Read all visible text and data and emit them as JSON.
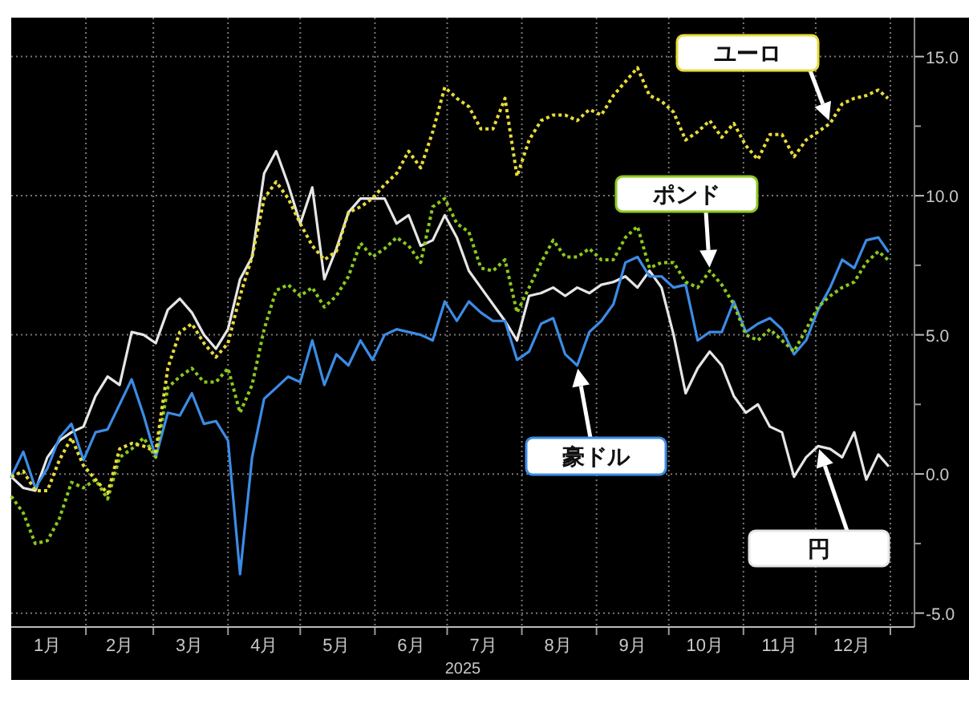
{
  "chart_data": {
    "type": "line",
    "xlabel": "2025",
    "grid": true,
    "legend": false,
    "xlim": [
      "2025-01-01",
      "2026-01-11"
    ],
    "xticks": [
      {
        "value": "2025-01-16",
        "label": "1月"
      },
      {
        "value": "2025-02-01",
        "label": null
      },
      {
        "value": "2025-02-15",
        "label": "2月"
      },
      {
        "value": "2025-03-01",
        "label": null
      },
      {
        "value": "2025-03-16",
        "label": "3月"
      },
      {
        "value": "2025-04-01",
        "label": null
      },
      {
        "value": "2025-04-16",
        "label": "4月"
      },
      {
        "value": "2025-05-01",
        "label": null
      },
      {
        "value": "2025-05-16",
        "label": "5月"
      },
      {
        "value": "2025-06-01",
        "label": null
      },
      {
        "value": "2025-06-16",
        "label": "6月"
      },
      {
        "value": "2025-07-01",
        "label": null
      },
      {
        "value": "2025-07-16",
        "label": "7月"
      },
      {
        "value": "2025-08-01",
        "label": null
      },
      {
        "value": "2025-08-16",
        "label": "8月"
      },
      {
        "value": "2025-09-01",
        "label": null
      },
      {
        "value": "2025-09-16",
        "label": "9月"
      },
      {
        "value": "2025-10-01",
        "label": null
      },
      {
        "value": "2025-10-16",
        "label": "10月"
      },
      {
        "value": "2025-11-01",
        "label": null
      },
      {
        "value": "2025-11-16",
        "label": "11月"
      },
      {
        "value": "2025-12-01",
        "label": null
      },
      {
        "value": "2025-12-16",
        "label": "12月"
      },
      {
        "value": "2026-01-01",
        "label": null
      }
    ],
    "ylim": [
      -5.5,
      16.4
    ],
    "yticks": [
      {
        "value": -5,
        "label": "-5.0"
      },
      {
        "value": -2.5,
        "label": null
      },
      {
        "value": 0,
        "label": "0.0"
      },
      {
        "value": 2.5,
        "label": null
      },
      {
        "value": 5,
        "label": "5.0"
      },
      {
        "value": 7.5,
        "label": null
      },
      {
        "value": 10,
        "label": "10.0"
      },
      {
        "value": 12.5,
        "label": null
      },
      {
        "value": 15,
        "label": "15.0"
      }
    ],
    "x": [
      "2025-01-01",
      "2025-01-06",
      "2025-01-11",
      "2025-01-16",
      "2025-01-21",
      "2025-01-26",
      "2025-01-31",
      "2025-02-05",
      "2025-02-10",
      "2025-02-15",
      "2025-02-20",
      "2025-02-25",
      "2025-03-02",
      "2025-03-07",
      "2025-03-12",
      "2025-03-17",
      "2025-03-22",
      "2025-03-27",
      "2025-04-01",
      "2025-04-06",
      "2025-04-11",
      "2025-04-16",
      "2025-04-21",
      "2025-04-26",
      "2025-05-01",
      "2025-05-06",
      "2025-05-11",
      "2025-05-16",
      "2025-05-21",
      "2025-05-26",
      "2025-05-31",
      "2025-06-05",
      "2025-06-10",
      "2025-06-15",
      "2025-06-20",
      "2025-06-25",
      "2025-06-30",
      "2025-07-05",
      "2025-07-10",
      "2025-07-15",
      "2025-07-20",
      "2025-07-25",
      "2025-07-30",
      "2025-08-04",
      "2025-08-09",
      "2025-08-14",
      "2025-08-19",
      "2025-08-24",
      "2025-08-29",
      "2025-09-03",
      "2025-09-08",
      "2025-09-13",
      "2025-09-18",
      "2025-09-23",
      "2025-09-28",
      "2025-10-03",
      "2025-10-08",
      "2025-10-13",
      "2025-10-18",
      "2025-10-23",
      "2025-10-28",
      "2025-11-02",
      "2025-11-07",
      "2025-11-12",
      "2025-11-17",
      "2025-11-22",
      "2025-11-27",
      "2025-12-02",
      "2025-12-07",
      "2025-12-12",
      "2025-12-17",
      "2025-12-22",
      "2025-12-27",
      "2025-12-31"
    ],
    "series": [
      {
        "name": "円",
        "color": "#e6e6e6",
        "line_style": "solid",
        "values": [
          -0.1,
          -0.5,
          -0.6,
          0.6,
          1.2,
          1.5,
          1.7,
          2.8,
          3.5,
          3.2,
          5.1,
          5.0,
          4.7,
          5.9,
          6.3,
          5.8,
          5.0,
          4.5,
          5.2,
          7.0,
          7.8,
          10.8,
          11.6,
          10.4,
          9.0,
          10.3,
          7.0,
          8.1,
          9.4,
          9.9,
          9.9,
          9.9,
          9.0,
          9.3,
          8.2,
          8.4,
          9.3,
          8.5,
          7.3,
          6.7,
          6.1,
          5.5,
          4.8,
          6.4,
          6.5,
          6.7,
          6.4,
          6.7,
          6.5,
          6.8,
          6.9,
          7.1,
          6.7,
          7.3,
          6.7,
          5.0,
          2.9,
          3.8,
          4.4,
          3.9,
          2.8,
          2.2,
          2.5,
          1.7,
          1.5,
          -0.1,
          0.6,
          1.0,
          0.9,
          0.6,
          1.5,
          -0.2,
          0.7,
          0.3
        ]
      },
      {
        "name": "豪ドル",
        "color": "#3c8ce6",
        "line_style": "solid",
        "values": [
          -0.1,
          0.8,
          -0.5,
          0.2,
          1.3,
          1.8,
          0.5,
          1.5,
          1.6,
          2.5,
          3.4,
          2.1,
          0.6,
          2.2,
          2.1,
          2.9,
          1.8,
          1.9,
          1.2,
          -3.6,
          0.6,
          2.7,
          3.1,
          3.5,
          3.3,
          4.8,
          3.2,
          4.3,
          3.9,
          4.8,
          4.1,
          5.0,
          5.2,
          5.1,
          5.0,
          4.8,
          6.2,
          5.5,
          6.2,
          5.8,
          5.5,
          5.5,
          4.1,
          4.4,
          5.4,
          5.6,
          4.3,
          3.9,
          5.1,
          5.5,
          6.1,
          7.6,
          7.8,
          7.1,
          7.1,
          6.7,
          6.8,
          4.8,
          5.1,
          5.1,
          6.2,
          5.1,
          5.4,
          5.6,
          5.2,
          4.3,
          4.8,
          5.9,
          6.7,
          7.7,
          7.4,
          8.4,
          8.5,
          8.0
        ]
      },
      {
        "name": "ポンド",
        "color": "#8cc81e",
        "line_style": "dotted",
        "values": [
          -0.8,
          -1.4,
          -2.5,
          -2.4,
          -1.6,
          -0.3,
          -0.5,
          -0.2,
          -0.9,
          0.6,
          0.9,
          1.3,
          0.6,
          3.1,
          3.5,
          3.8,
          3.3,
          3.3,
          3.8,
          2.2,
          3.2,
          5.2,
          6.6,
          6.8,
          6.4,
          6.7,
          6.0,
          6.4,
          7.1,
          8.3,
          7.8,
          8.1,
          8.5,
          8.2,
          7.6,
          9.6,
          9.9,
          9.0,
          8.7,
          7.4,
          7.3,
          7.7,
          5.8,
          6.7,
          7.6,
          8.4,
          7.8,
          7.8,
          8.1,
          7.7,
          7.7,
          8.5,
          8.9,
          7.4,
          7.6,
          7.6,
          6.9,
          6.7,
          7.3,
          6.8,
          6.1,
          5.0,
          4.8,
          5.2,
          4.8,
          4.4,
          5.2,
          6.0,
          6.4,
          6.7,
          6.9,
          7.6,
          8.0,
          7.7
        ]
      },
      {
        "name": "ユーロ",
        "color": "#e6dc3c",
        "line_style": "dotted",
        "values": [
          -0.1,
          0.1,
          -0.6,
          -0.6,
          0.5,
          1.3,
          0.3,
          -0.2,
          -0.7,
          0.9,
          1.1,
          1.0,
          0.8,
          3.8,
          5.1,
          5.4,
          4.7,
          4.2,
          4.7,
          6.4,
          7.8,
          9.9,
          10.5,
          9.9,
          9.0,
          8.2,
          7.7,
          8.0,
          9.4,
          9.6,
          9.9,
          10.4,
          10.8,
          11.6,
          11.0,
          12.3,
          13.9,
          13.5,
          13.2,
          12.4,
          12.4,
          13.5,
          10.7,
          12.0,
          12.7,
          12.9,
          12.9,
          12.7,
          13.1,
          12.9,
          13.6,
          14.1,
          14.6,
          13.6,
          13.4,
          13.0,
          12.0,
          12.3,
          12.7,
          12.1,
          12.6,
          11.8,
          11.3,
          12.2,
          12.2,
          11.4,
          12.0,
          12.3,
          12.6,
          13.3,
          13.5,
          13.6,
          13.8,
          13.5
        ]
      }
    ]
  }
}
